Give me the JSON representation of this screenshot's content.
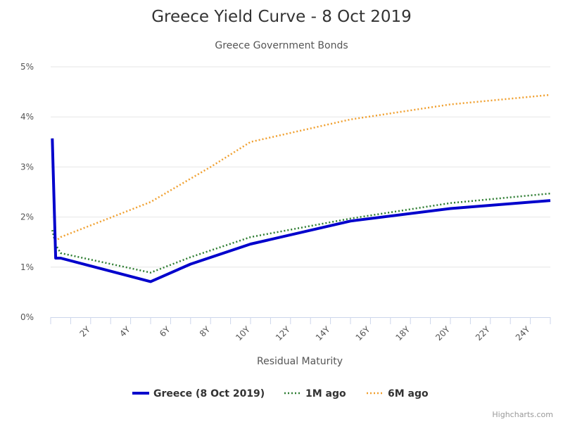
{
  "chart_data": {
    "type": "line",
    "title": "Greece Yield Curve - 8 Oct 2019",
    "subtitle": "Greece Government Bonds",
    "xlabel": "Residual Maturity",
    "ylabel": "",
    "x_unit": "years",
    "xlim": [
      0,
      25
    ],
    "ylim": [
      0,
      5
    ],
    "x_ticks": [
      2,
      4,
      6,
      8,
      10,
      12,
      14,
      16,
      18,
      20,
      22,
      24
    ],
    "x_tick_labels": [
      "2Y",
      "4Y",
      "6Y",
      "8Y",
      "10Y",
      "12Y",
      "14Y",
      "16Y",
      "18Y",
      "20Y",
      "22Y",
      "24Y"
    ],
    "y_ticks": [
      0,
      1,
      2,
      3,
      4,
      5
    ],
    "y_tick_labels": [
      "0%",
      "1%",
      "2%",
      "3%",
      "4%",
      "5%"
    ],
    "grid": true,
    "legend_position": "bottom-center",
    "credit": "Highcharts.com",
    "series": [
      {
        "name": "Greece (8 Oct 2019)",
        "color": "#0000cc",
        "style": "solid",
        "points": [
          [
            0.08,
            3.57
          ],
          [
            0.25,
            1.18
          ],
          [
            0.5,
            1.18
          ],
          [
            5,
            0.71
          ],
          [
            7,
            1.06
          ],
          [
            10,
            1.46
          ],
          [
            15,
            1.92
          ],
          [
            20,
            2.17
          ],
          [
            25,
            2.33
          ]
        ]
      },
      {
        "name": "1M ago",
        "color": "#2e7d32",
        "style": "dotted",
        "points": [
          [
            0.08,
            1.74
          ],
          [
            0.25,
            1.45
          ],
          [
            0.5,
            1.28
          ],
          [
            5,
            0.89
          ],
          [
            7,
            1.2
          ],
          [
            10,
            1.6
          ],
          [
            15,
            1.97
          ],
          [
            20,
            2.28
          ],
          [
            25,
            2.47
          ]
        ]
      },
      {
        "name": "6M ago",
        "color": "#f0a030",
        "style": "dotted",
        "points": [
          [
            0.08,
            3.57
          ],
          [
            0.25,
            1.52
          ],
          [
            0.5,
            1.6
          ],
          [
            5,
            2.3
          ],
          [
            8,
            3.0
          ],
          [
            10,
            3.5
          ],
          [
            15,
            3.95
          ],
          [
            20,
            4.25
          ],
          [
            25,
            4.44
          ]
        ]
      }
    ]
  }
}
